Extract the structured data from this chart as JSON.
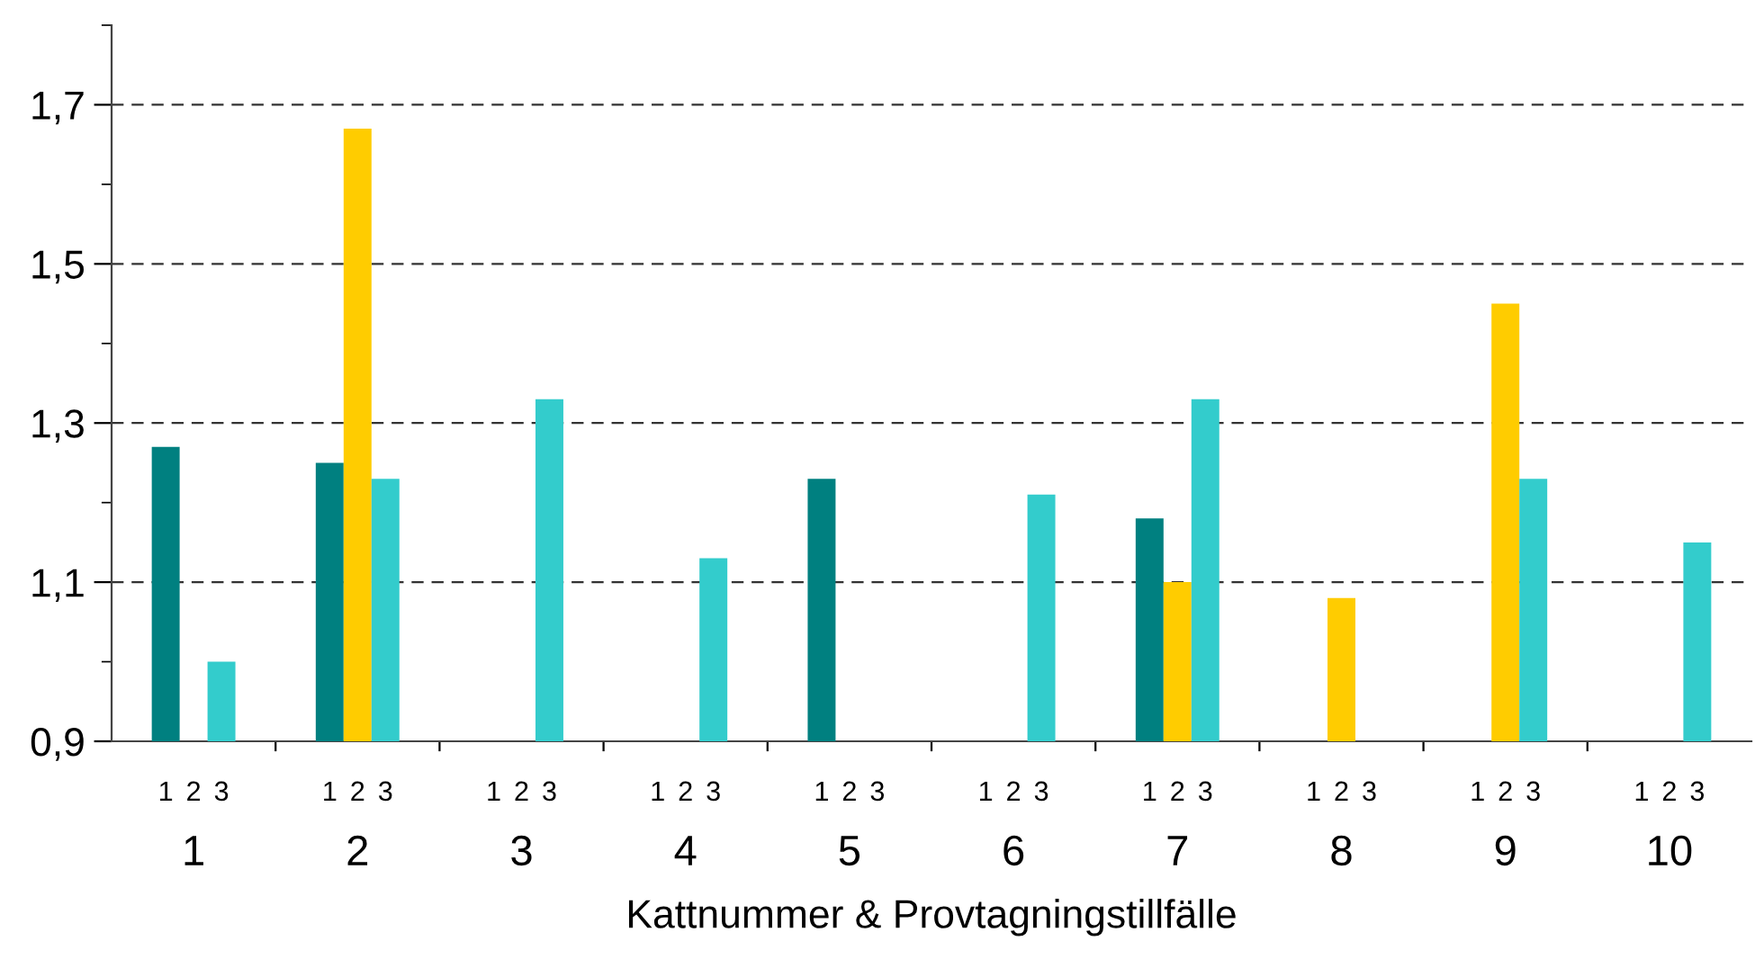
{
  "chart_data": {
    "type": "bar",
    "xlabel": "Kattnummer & Provtagningstillfälle",
    "categories": [
      "1",
      "2",
      "3",
      "4",
      "5",
      "6",
      "7",
      "8",
      "9",
      "10"
    ],
    "series": [
      {
        "name": "1",
        "color": "#008080",
        "values": [
          1.27,
          1.25,
          null,
          null,
          1.23,
          null,
          1.18,
          null,
          null,
          null
        ]
      },
      {
        "name": "2",
        "color": "#ffcc00",
        "values": [
          null,
          1.67,
          null,
          null,
          null,
          null,
          1.1,
          1.08,
          1.45,
          null
        ]
      },
      {
        "name": "3",
        "color": "#33cccc",
        "values": [
          1.0,
          1.23,
          1.33,
          1.13,
          null,
          1.21,
          1.33,
          null,
          1.23,
          1.15
        ]
      }
    ],
    "ylim": [
      0.9,
      1.8
    ],
    "yticks": [
      {
        "value": 0.9,
        "label": "0,9"
      },
      {
        "value": 1.0,
        "label": null
      },
      {
        "value": 1.1,
        "label": "1,1"
      },
      {
        "value": 1.2,
        "label": null
      },
      {
        "value": 1.3,
        "label": "1,3"
      },
      {
        "value": 1.4,
        "label": null
      },
      {
        "value": 1.5,
        "label": "1,5"
      },
      {
        "value": 1.6,
        "label": null
      },
      {
        "value": 1.7,
        "label": "1,7"
      },
      {
        "value": 1.8,
        "label": null
      }
    ],
    "grid": "y",
    "legend": false
  }
}
